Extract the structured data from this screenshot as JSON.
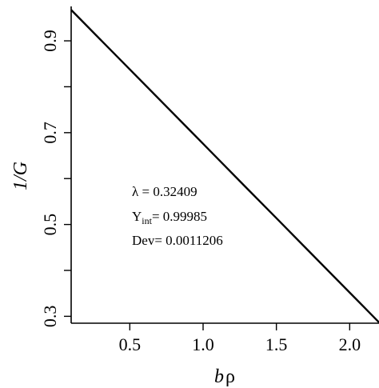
{
  "chart_data": {
    "type": "line",
    "title": "",
    "xlabel_parts": {
      "italic": "b",
      "upright": "ρ"
    },
    "ylabel": "1/G",
    "xlim": [
      0.1,
      2.2
    ],
    "ylim": [
      0.285,
      0.975
    ],
    "x_ticks": [
      0.5,
      1.0,
      1.5,
      2.0
    ],
    "x_tick_labels": [
      "0.5",
      "1.0",
      "1.5",
      "2.0"
    ],
    "y_ticks": [
      0.3,
      0.4,
      0.5,
      0.6,
      0.7,
      0.8,
      0.9
    ],
    "y_tick_labels": [
      "0.3",
      "",
      "0.5",
      "",
      "0.7",
      "",
      "0.9"
    ],
    "grid": false,
    "legend": "none",
    "line_color": "#000000",
    "series": [
      {
        "x": [
          0.1,
          0.3,
          0.5,
          0.7,
          0.9,
          1.1,
          1.3,
          1.5,
          1.7,
          1.9,
          2.1,
          2.2
        ],
        "y": [
          0.9674,
          0.9026,
          0.8378,
          0.773,
          0.7082,
          0.6434,
          0.5785,
          0.5137,
          0.4489,
          0.3841,
          0.3193,
          0.2869
        ]
      }
    ],
    "annotations": {
      "lambda_label": "λ = 0.32409",
      "yint_main": "Y",
      "yint_sub": "int",
      "yint_value": "= 0.99985",
      "dev_label": "Dev= 0.0011206"
    }
  }
}
